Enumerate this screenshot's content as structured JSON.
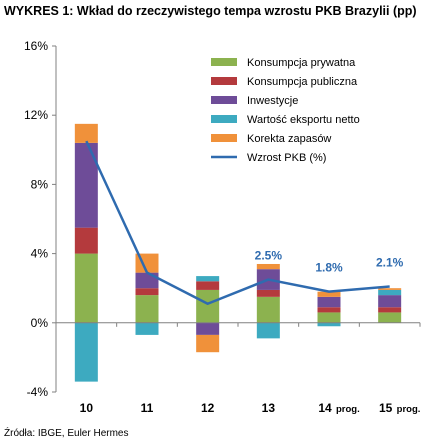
{
  "title": "WYKRES 1: Wkład do rzeczywistego tempa wzrostu PKB Brazylii (pp)",
  "source": "Źródła: IBGE, Euler Hermes",
  "colors": {
    "private_consumption": "#8CB24F",
    "public_consumption": "#B43A3D",
    "investment": "#6E4C98",
    "net_exports": "#3DAAC0",
    "inventory": "#F0913A",
    "gdp_line": "#2F6BAF",
    "label": "#2F6BAF"
  },
  "chart_data": {
    "type": "bar",
    "stacked": true,
    "categories": [
      "10",
      "11",
      "12",
      "13",
      "14",
      "15"
    ],
    "category_suffixes": [
      "",
      "",
      "",
      "",
      "prog.",
      "prog."
    ],
    "ylim": [
      -4,
      16
    ],
    "y_ticks": [
      "-4%",
      "0%",
      "4%",
      "8%",
      "12%",
      "16%"
    ],
    "y_tick_values": [
      -4,
      0,
      4,
      8,
      12,
      16
    ],
    "grid": false,
    "legend_position": "top-right",
    "series": [
      {
        "name": "Konsumpcja prywatna",
        "key": "private_consumption",
        "values": [
          4.0,
          1.6,
          1.9,
          1.5,
          0.6,
          0.6
        ]
      },
      {
        "name": "Konsumpcja publiczna",
        "key": "public_consumption",
        "values": [
          1.5,
          0.4,
          0.5,
          0.4,
          0.3,
          0.3
        ]
      },
      {
        "name": "Inwestycje",
        "key": "investment",
        "values": [
          4.9,
          0.9,
          -0.7,
          1.2,
          0.6,
          0.7
        ]
      },
      {
        "name": "Wartość eksportu netto",
        "key": "net_exports",
        "values": [
          -3.4,
          -0.7,
          0.3,
          -0.9,
          -0.2,
          0.3
        ]
      },
      {
        "name": "Korekta zapasów",
        "key": "inventory",
        "values": [
          1.1,
          1.1,
          -1.0,
          0.3,
          0.3,
          0.1
        ]
      }
    ],
    "line": {
      "name": "Wzrost PKB (%)",
      "key": "gdp_line",
      "values": [
        10.5,
        2.9,
        1.1,
        2.5,
        1.8,
        2.1
      ]
    },
    "data_labels": [
      {
        "index": 3,
        "text": "2.5%"
      },
      {
        "index": 4,
        "text": "1.8%"
      },
      {
        "index": 5,
        "text": "2.1%"
      }
    ]
  }
}
